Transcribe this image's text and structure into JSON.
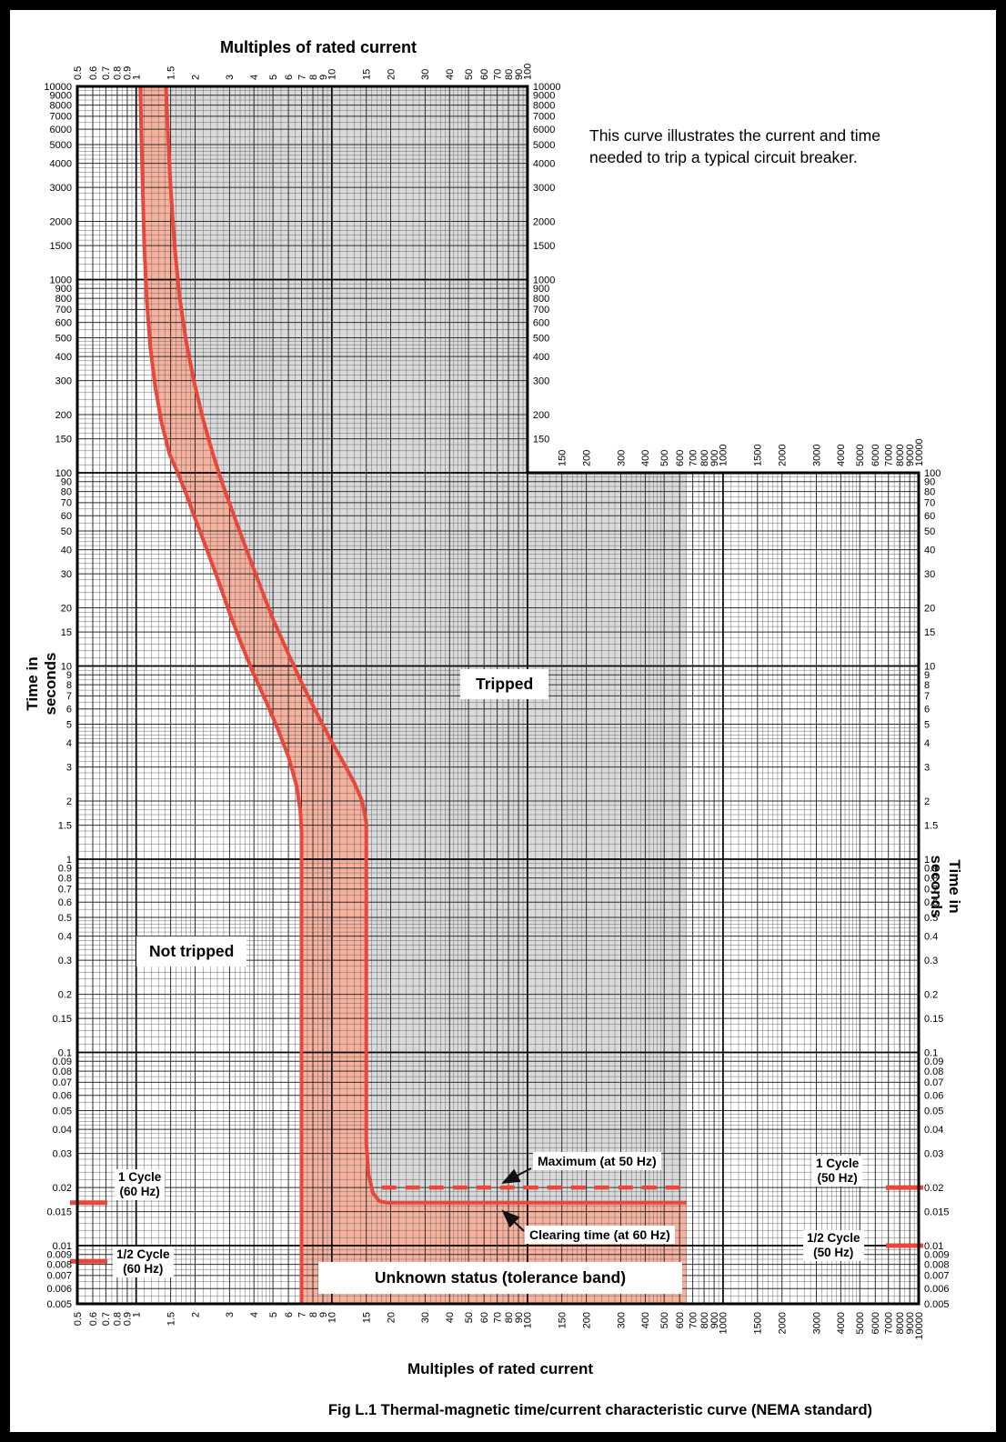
{
  "figure": {
    "caption": "Fig L.1  Thermal-magnetic time/current characteristic curve (NEMA standard)",
    "description_line1": "This curve illustrates the current and time",
    "description_line2": "needed to trip a typical circuit breaker."
  },
  "chart_data": {
    "type": "area",
    "title": "Thermal-magnetic time/current characteristic curve (NEMA standard)",
    "x_axis": {
      "label": "Multiples of rated current",
      "scale": "log",
      "min": 0.5,
      "max": 10000
    },
    "y_axis": {
      "label": "Time in seconds",
      "scale": "log",
      "min": 0.005,
      "max": 10000
    },
    "upper_section_x_max": 100,
    "upper_section_y_min": 100,
    "gray_region_x_max": 650,
    "x_tick_labels_upper": [
      "0.5",
      "0.6",
      "0.7",
      "0.8",
      "0.9",
      "1",
      "1.5",
      "2",
      "3",
      "4",
      "5",
      "6",
      "7",
      "8",
      "9",
      "10",
      "15",
      "20",
      "30",
      "40",
      "50",
      "60",
      "70",
      "80",
      "90",
      "100"
    ],
    "x_tick_labels_mid": [
      "150",
      "200",
      "300",
      "400",
      "500",
      "600",
      "700",
      "800",
      "900",
      "1000",
      "1500",
      "2000",
      "3000",
      "4000",
      "5000",
      "6000",
      "7000",
      "8000",
      "9000",
      "10000"
    ],
    "x_tick_labels_full": [
      "0.5",
      "0.6",
      "0.7",
      "0.8",
      "0.9",
      "1",
      "1.5",
      "2",
      "3",
      "4",
      "5",
      "6",
      "7",
      "8",
      "9",
      "10",
      "15",
      "20",
      "30",
      "40",
      "50",
      "60",
      "70",
      "80",
      "90",
      "100",
      "150",
      "200",
      "300",
      "400",
      "500",
      "600",
      "700",
      "800",
      "900",
      "1000",
      "1500",
      "2000",
      "3000",
      "4000",
      "5000",
      "6000",
      "7000",
      "8000",
      "9000",
      "10000"
    ],
    "y_tick_labels_left": [
      "10000",
      "9000",
      "8000",
      "7000",
      "6000",
      "5000",
      "4000",
      "3000",
      "2000",
      "1500",
      "1000",
      "900",
      "800",
      "700",
      "600",
      "500",
      "400",
      "300",
      "200",
      "150",
      "100",
      "90",
      "80",
      "70",
      "60",
      "50",
      "40",
      "30",
      "20",
      "15",
      "10",
      "9",
      "8",
      "7",
      "6",
      "5",
      "4",
      "3",
      "2",
      "1.5",
      "1",
      "0.9",
      "0.8",
      "0.7",
      "0.6",
      "0.5",
      "0.4",
      "0.3",
      "0.2",
      "0.15",
      "0.1",
      "0.09",
      "0.08",
      "0.07",
      "0.06",
      "0.05",
      "0.04",
      "0.03",
      "0.02",
      "0.015",
      "0.01",
      "0.009",
      "0.008",
      "0.007",
      "0.006",
      "0.005"
    ],
    "y_tick_labels_right": [
      "100",
      "90",
      "80",
      "70",
      "60",
      "50",
      "40",
      "30",
      "20",
      "15",
      "10",
      "9",
      "8",
      "7",
      "6",
      "5",
      "4",
      "3",
      "2",
      "1.5",
      "1",
      "0.9",
      "0.8",
      "0.7",
      "0.6",
      "0.5",
      "0.4",
      "0.3",
      "0.2",
      "0.15",
      "0.1",
      "0.09",
      "0.08",
      "0.07",
      "0.06",
      "0.05",
      "0.04",
      "0.03",
      "0.02",
      "0.015",
      "0.01",
      "0.009",
      "0.008",
      "0.007",
      "0.006",
      "0.005"
    ],
    "y_tick_labels_upper_right": [
      "10000",
      "9000",
      "8000",
      "7000",
      "6000",
      "5000",
      "4000",
      "3000",
      "2000",
      "1500",
      "1000",
      "900",
      "800",
      "700",
      "600",
      "500",
      "400",
      "300",
      "200",
      "150"
    ],
    "regions": {
      "tripped": "Tripped",
      "not_tripped": "Not tripped",
      "tolerance_band": "Unknown status (tolerance band)"
    },
    "series": [
      {
        "name": "minimum_trip_curve",
        "points": [
          [
            1.05,
            10000
          ],
          [
            1.06,
            6000
          ],
          [
            1.08,
            3000
          ],
          [
            1.1,
            1500
          ],
          [
            1.13,
            800
          ],
          [
            1.18,
            450
          ],
          [
            1.25,
            280
          ],
          [
            1.35,
            180
          ],
          [
            1.48,
            125
          ],
          [
            1.63,
            100
          ],
          [
            1.8,
            78
          ],
          [
            2.0,
            58
          ],
          [
            2.3,
            40
          ],
          [
            2.65,
            27
          ],
          [
            3.05,
            18
          ],
          [
            3.5,
            12.5
          ],
          [
            4.0,
            9
          ],
          [
            4.6,
            6.6
          ],
          [
            5.3,
            4.7
          ],
          [
            6.0,
            3.4
          ],
          [
            6.6,
            2.4
          ],
          [
            6.9,
            1.8
          ],
          [
            7.0,
            1.4
          ],
          [
            7.0,
            0.005
          ]
        ]
      },
      {
        "name": "maximum_trip_curve",
        "points": [
          [
            1.42,
            10000
          ],
          [
            1.45,
            6000
          ],
          [
            1.5,
            3000
          ],
          [
            1.57,
            1500
          ],
          [
            1.67,
            800
          ],
          [
            1.8,
            480
          ],
          [
            1.97,
            300
          ],
          [
            2.18,
            195
          ],
          [
            2.45,
            128
          ],
          [
            2.78,
            86
          ],
          [
            3.2,
            58
          ],
          [
            3.7,
            39
          ],
          [
            4.3,
            26
          ],
          [
            5.0,
            17.5
          ],
          [
            5.9,
            12
          ],
          [
            7.0,
            8.2
          ],
          [
            8.3,
            5.8
          ],
          [
            9.8,
            4.2
          ],
          [
            11.4,
            3.2
          ],
          [
            13.0,
            2.5
          ],
          [
            14.3,
            2.0
          ],
          [
            15.0,
            1.55
          ],
          [
            15.0,
            0.034
          ],
          [
            15.4,
            0.0235
          ],
          [
            16.2,
            0.0188
          ],
          [
            17.5,
            0.017
          ],
          [
            19.0,
            0.0167
          ],
          [
            650,
            0.0167
          ]
        ]
      }
    ],
    "reference_lines": {
      "maximum_50hz": {
        "label": "Maximum (at 50 Hz)",
        "y": 0.02,
        "x_start": 18,
        "x_end": 650,
        "style": "dashed"
      },
      "clearing_60hz": {
        "label": "Clearing time (at 60 Hz)",
        "y": 0.0167,
        "x_start": 15,
        "x_end": 650,
        "style": "solid"
      }
    },
    "cycle_markers": [
      {
        "label": "1 Cycle",
        "freq": "(60 Hz)",
        "y": 0.0167,
        "side": "left"
      },
      {
        "label": "1/2 Cycle",
        "freq": "(60 Hz)",
        "y": 0.0083,
        "side": "left"
      },
      {
        "label": "1 Cycle",
        "freq": "(50 Hz)",
        "y": 0.02,
        "side": "right"
      },
      {
        "label": "1/2 Cycle",
        "freq": "(50 Hz)",
        "y": 0.01,
        "side": "right"
      }
    ],
    "colors": {
      "tripped_fill": "#d9dadb",
      "band_fill": "#f8b19d",
      "curve": "#e8473c",
      "grid_minor": "#6a6a6a",
      "grid_labeled": "#2e2e2e",
      "grid_decade": "#000000",
      "background": "#ffffff"
    }
  }
}
